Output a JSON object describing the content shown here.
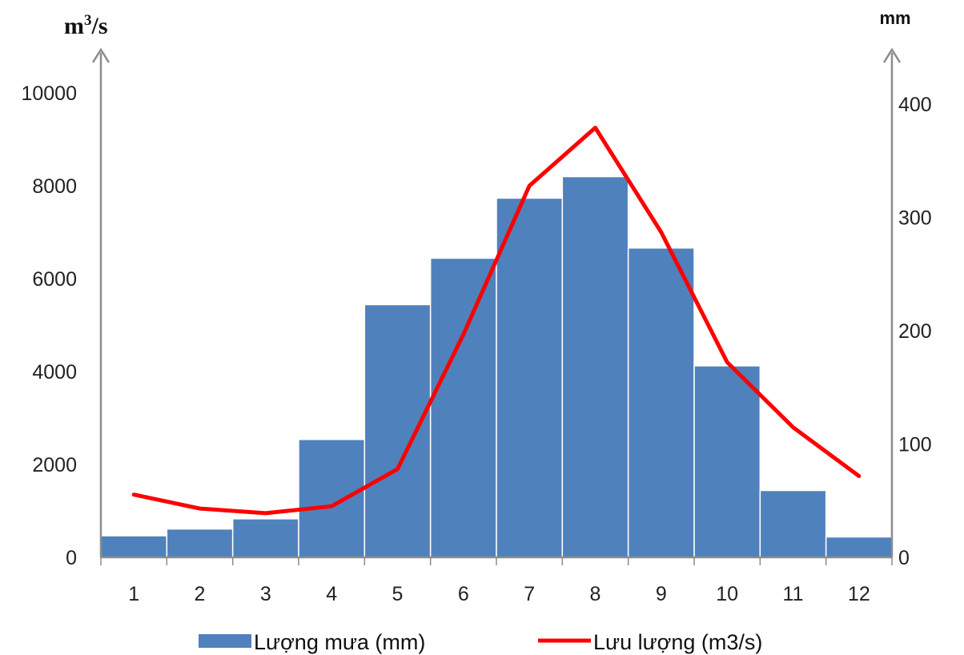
{
  "chart_data": {
    "type": "bar",
    "categories": [
      "1",
      "2",
      "3",
      "4",
      "5",
      "6",
      "7",
      "8",
      "9",
      "10",
      "11",
      "12"
    ],
    "series": [
      {
        "name": "Lượng mưa (mm)",
        "type": "bar",
        "axis": "right",
        "color": "#4F81BD",
        "values": [
          19,
          25,
          34,
          104,
          223,
          264,
          317,
          336,
          273,
          169,
          59,
          18
        ]
      },
      {
        "name": "Lưu lượng (m3/s)",
        "type": "line",
        "axis": "left",
        "color": "#FF0000",
        "values": [
          1350,
          1050,
          950,
          1100,
          1900,
          4800,
          8000,
          9250,
          7000,
          4200,
          2800,
          1750
        ]
      }
    ],
    "y_left": {
      "unit_base": "m",
      "unit_sup": "3",
      "unit_tail": "/s",
      "ylim": [
        0,
        10000
      ],
      "ticks": [
        "0",
        "2000",
        "4000",
        "6000",
        "8000",
        "10000"
      ]
    },
    "y_right": {
      "unit": "mm",
      "ylim": [
        0,
        400
      ],
      "ticks": [
        "0",
        "100",
        "200",
        "300",
        "400"
      ]
    },
    "grid": false,
    "legend_position": "bottom",
    "legend": [
      "Lượng mưa (mm)",
      "Lưu lượng (m3/s)"
    ]
  }
}
